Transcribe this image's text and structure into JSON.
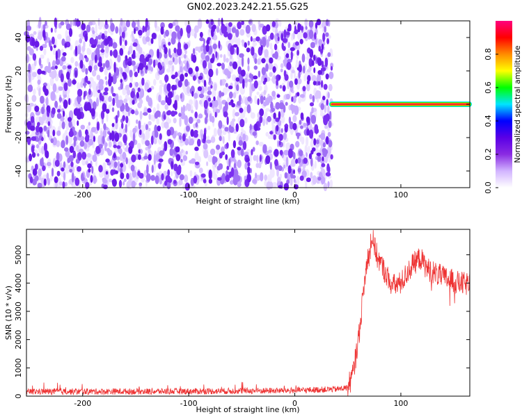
{
  "chart_data": [
    {
      "type": "heatmap",
      "title": "GN02.2023.242.21.55.G25",
      "xlabel": "Height of straight line (km)",
      "ylabel": "Frequency (Hz)",
      "xlim": [
        -253,
        165
      ],
      "ylim": [
        -50,
        50
      ],
      "x_ticks": [
        -200,
        -100,
        0,
        100
      ],
      "y_ticks": [
        -40,
        -20,
        0,
        20,
        40
      ],
      "noise_region_x": [
        -253,
        35
      ],
      "signal_line": {
        "x": [
          35,
          165
        ],
        "frequency": 0
      },
      "colorbar": {
        "label": "Normalized spectral amplitude",
        "range": [
          0,
          1
        ],
        "ticks": [
          0.0,
          0.2,
          0.4,
          0.6,
          0.8
        ],
        "colormap": [
          "#ffffff",
          "#d2b4ff",
          "#8a2be2",
          "#5a00e6",
          "#0000ff",
          "#00e5ff",
          "#00ff00",
          "#ffff00",
          "#ff8c00",
          "#ff0000",
          "#ff007f"
        ]
      }
    },
    {
      "type": "line",
      "xlabel": "Height of straight line (km)",
      "ylabel": "SNR (10 * v/v)",
      "xlim": [
        -253,
        165
      ],
      "ylim": [
        0,
        5900
      ],
      "x_ticks": [
        -200,
        -100,
        0,
        100
      ],
      "y_ticks": [
        0,
        1000,
        2000,
        3000,
        4000,
        5000
      ],
      "color": "#ee3333",
      "envelope": [
        {
          "x": -253,
          "y": 160
        },
        {
          "x": -100,
          "y": 170
        },
        {
          "x": 0,
          "y": 200
        },
        {
          "x": 40,
          "y": 250
        },
        {
          "x": 50,
          "y": 300
        },
        {
          "x": 55,
          "y": 800
        },
        {
          "x": 60,
          "y": 2000
        },
        {
          "x": 65,
          "y": 3800
        },
        {
          "x": 70,
          "y": 5300
        },
        {
          "x": 73,
          "y": 5600
        },
        {
          "x": 78,
          "y": 4900
        },
        {
          "x": 85,
          "y": 4400
        },
        {
          "x": 92,
          "y": 3900
        },
        {
          "x": 100,
          "y": 4000
        },
        {
          "x": 110,
          "y": 4600
        },
        {
          "x": 118,
          "y": 4900
        },
        {
          "x": 125,
          "y": 4500
        },
        {
          "x": 140,
          "y": 4200
        },
        {
          "x": 155,
          "y": 4000
        },
        {
          "x": 165,
          "y": 3950
        }
      ]
    }
  ]
}
